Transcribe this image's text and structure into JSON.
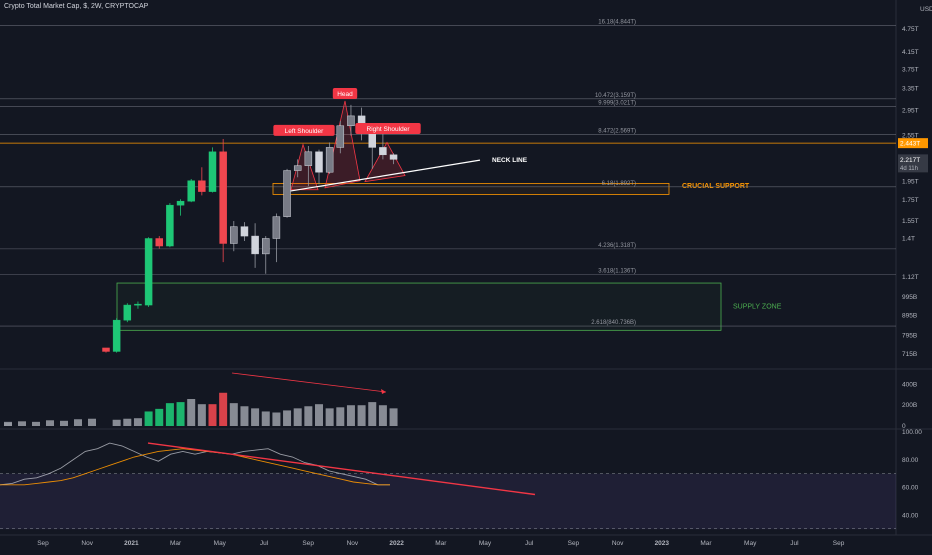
{
  "header": {
    "title": "Crypto Total Market Cap, $, 2W, CRYPTOCAP"
  },
  "colors": {
    "background": "#131722",
    "up": "#26a69a",
    "down": "#ef5350",
    "green_candle": "#1ec776",
    "red_candle": "#f0474f",
    "fib_line": "#787b86",
    "orange": "#ff9800",
    "supply_zone": "#4caf50",
    "neckline": "#ffffff",
    "trendline": "#f23645"
  },
  "chart_data": [
    {
      "type": "candlestick",
      "title": "Crypto Total Market Cap, $, 2W, CRYPTOCAP",
      "unit": "USD",
      "y_scale": "log",
      "ylim": [
        0.67,
        5.3
      ],
      "y_ticks": [
        {
          "v": 4.75,
          "label": "4.75T"
        },
        {
          "v": 4.15,
          "label": "4.15T"
        },
        {
          "v": 3.75,
          "label": "3.75T"
        },
        {
          "v": 3.35,
          "label": "3.35T"
        },
        {
          "v": 2.95,
          "label": "2.95T"
        },
        {
          "v": 2.55,
          "label": "2.55T"
        },
        {
          "v": 1.95,
          "label": "1.95T"
        },
        {
          "v": 1.75,
          "label": "1.75T"
        },
        {
          "v": 1.55,
          "label": "1.55T"
        },
        {
          "v": 1.4,
          "label": "1.4T"
        },
        {
          "v": 1.12,
          "label": "1.12T"
        },
        {
          "v": 0.995,
          "label": "995B"
        },
        {
          "v": 0.895,
          "label": "895B"
        },
        {
          "v": 0.795,
          "label": "795B"
        },
        {
          "v": 0.715,
          "label": "715B"
        }
      ],
      "x_ticks": [
        "Sep",
        "Nov",
        "2021",
        "Mar",
        "May",
        "Jul",
        "Sep",
        "Nov",
        "2022",
        "Mar",
        "May",
        "Jul",
        "Sep",
        "Nov",
        "2023",
        "Mar",
        "May",
        "Jul",
        "Sep"
      ],
      "price_badges": [
        {
          "value": 2.44,
          "label": "2.443T"
        },
        {
          "value": 2.22,
          "label": "2.217T",
          "sublabel": "4d 11h"
        }
      ],
      "candles": [
        {
          "o": 0.74,
          "h": 0.74,
          "l": 0.72,
          "c": 0.725
        },
        {
          "o": 0.725,
          "h": 0.88,
          "l": 0.72,
          "c": 0.87
        },
        {
          "o": 0.87,
          "h": 0.96,
          "l": 0.86,
          "c": 0.95
        },
        {
          "o": 0.95,
          "h": 0.97,
          "l": 0.93,
          "c": 0.955
        },
        {
          "o": 0.95,
          "h": 1.41,
          "l": 0.94,
          "c": 1.4
        },
        {
          "o": 1.4,
          "h": 1.42,
          "l": 1.32,
          "c": 1.34
        },
        {
          "o": 1.34,
          "h": 1.72,
          "l": 1.33,
          "c": 1.7
        },
        {
          "o": 1.7,
          "h": 1.76,
          "l": 1.6,
          "c": 1.74
        },
        {
          "o": 1.74,
          "h": 1.98,
          "l": 1.73,
          "c": 1.96
        },
        {
          "o": 1.96,
          "h": 2.12,
          "l": 1.8,
          "c": 1.84
        },
        {
          "o": 1.84,
          "h": 2.38,
          "l": 1.83,
          "c": 2.32
        },
        {
          "o": 2.32,
          "h": 2.5,
          "l": 1.22,
          "c": 1.36
        },
        {
          "o": 1.36,
          "h": 1.55,
          "l": 1.3,
          "c": 1.5
        },
        {
          "o": 1.5,
          "h": 1.54,
          "l": 1.38,
          "c": 1.42
        },
        {
          "o": 1.42,
          "h": 1.53,
          "l": 1.18,
          "c": 1.28
        },
        {
          "o": 1.28,
          "h": 1.42,
          "l": 1.14,
          "c": 1.4
        },
        {
          "o": 1.4,
          "h": 1.62,
          "l": 1.22,
          "c": 1.59
        },
        {
          "o": 1.59,
          "h": 2.1,
          "l": 1.58,
          "c": 2.08
        },
        {
          "o": 2.08,
          "h": 2.22,
          "l": 2.0,
          "c": 2.14
        },
        {
          "o": 2.14,
          "h": 2.4,
          "l": 1.9,
          "c": 2.32
        },
        {
          "o": 2.32,
          "h": 2.35,
          "l": 1.92,
          "c": 2.06
        },
        {
          "o": 2.06,
          "h": 2.45,
          "l": 2.04,
          "c": 2.38
        },
        {
          "o": 2.38,
          "h": 2.78,
          "l": 2.3,
          "c": 2.7
        },
        {
          "o": 2.7,
          "h": 3.05,
          "l": 2.55,
          "c": 2.86
        },
        {
          "o": 2.86,
          "h": 3.0,
          "l": 2.48,
          "c": 2.6
        },
        {
          "o": 2.6,
          "h": 2.66,
          "l": 2.1,
          "c": 2.38
        },
        {
          "o": 2.38,
          "h": 2.58,
          "l": 2.22,
          "c": 2.28
        },
        {
          "o": 2.28,
          "h": 2.3,
          "l": 2.16,
          "c": 2.22
        }
      ],
      "fib_levels": [
        {
          "value": 4.844,
          "label": "16.18(4.844T)"
        },
        {
          "value": 3.159,
          "label": "10.472(3.159T)"
        },
        {
          "value": 3.021,
          "label": "9.999(3.021T)"
        },
        {
          "value": 2.569,
          "label": "8.472(2.569T)"
        },
        {
          "value": 1.892,
          "label": "6.18(1.892T)"
        },
        {
          "value": 1.318,
          "label": "4.236(1.318T)"
        },
        {
          "value": 1.136,
          "label": "3.618(1.136T)"
        },
        {
          "value": 0.8407,
          "label": "2.618(840.736B)"
        }
      ],
      "annotations": [
        {
          "text": "Head",
          "kind": "badge"
        },
        {
          "text": "Left Shoulder",
          "kind": "badge"
        },
        {
          "text": "Right Shoulder",
          "kind": "badge"
        },
        {
          "text": "NECK LINE",
          "kind": "label"
        },
        {
          "text": "CRUCIAL SUPPORT",
          "kind": "label"
        },
        {
          "text": "SUPPLY ZONE",
          "kind": "label"
        }
      ]
    },
    {
      "type": "bar",
      "unit": "Volume",
      "ylim": [
        0,
        520
      ],
      "y_ticks": [
        {
          "v": 400,
          "label": "400B"
        },
        {
          "v": 200,
          "label": "200B"
        },
        {
          "v": 0,
          "label": "0"
        }
      ],
      "values": [
        40,
        60,
        70,
        75,
        140,
        165,
        220,
        230,
        260,
        210,
        210,
        320,
        220,
        190,
        170,
        140,
        130,
        150,
        170,
        190,
        210,
        170,
        180,
        200,
        200,
        230,
        200,
        170
      ],
      "colors": [
        "gray",
        "gray",
        "gray",
        "gray",
        "green",
        "green",
        "green",
        "green",
        "gray",
        "gray",
        "red",
        "red",
        "gray",
        "gray",
        "gray",
        "gray",
        "gray",
        "gray",
        "gray",
        "gray",
        "gray",
        "gray",
        "gray",
        "gray",
        "gray",
        "gray",
        "gray",
        "gray"
      ]
    },
    {
      "type": "line",
      "unit": "RSI",
      "ylim": [
        28,
        100
      ],
      "y_ticks": [
        {
          "v": 100,
          "label": "100.00"
        },
        {
          "v": 80,
          "label": "80.00"
        },
        {
          "v": 60,
          "label": "60.00"
        },
        {
          "v": 40,
          "label": "40.00"
        }
      ],
      "series": [
        {
          "values": [
            62,
            63,
            66,
            67,
            70,
            74,
            80,
            86,
            88,
            92,
            90,
            86,
            82,
            79,
            84,
            86,
            84,
            86,
            85,
            84,
            86,
            87,
            88,
            84,
            82,
            78,
            76,
            72,
            70,
            68,
            66,
            62,
            62
          ]
        },
        {
          "values": [
            62,
            62,
            62,
            63,
            64,
            65,
            67,
            70,
            73,
            76,
            79,
            82,
            84,
            86,
            87,
            88,
            87,
            86,
            85,
            84,
            82,
            80,
            78,
            76,
            74,
            72,
            70,
            68,
            66,
            64,
            63,
            62,
            62
          ]
        }
      ]
    }
  ]
}
